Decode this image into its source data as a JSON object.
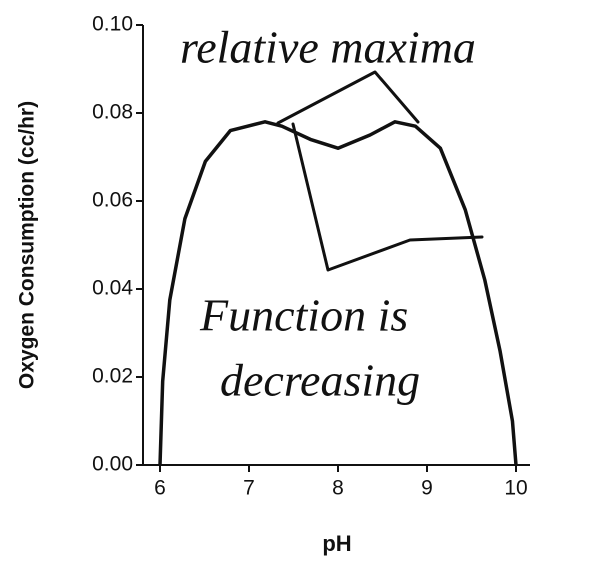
{
  "chart_data": {
    "type": "line",
    "xlabel": "pH",
    "ylabel": "Oxygen Consumption (cc/hr)",
    "xlim": [
      6,
      10
    ],
    "ylim": [
      0,
      0.1
    ],
    "xticks": [
      6,
      7,
      8,
      9,
      10
    ],
    "yticks": [
      {
        "value": 0,
        "label": "0.00"
      },
      {
        "value": 0.02,
        "label": "0.02"
      },
      {
        "value": 0.04,
        "label": "0.04"
      },
      {
        "value": 0.06,
        "label": "0.06"
      },
      {
        "value": 0.08,
        "label": "0.08"
      },
      {
        "value": 0.1,
        "label": "0.10"
      }
    ],
    "series": [
      {
        "color": "#111111",
        "x": [
          6,
          6.03,
          6.11,
          6.28,
          6.51,
          6.79,
          7.18,
          7.37,
          7.69,
          8.0,
          8.36,
          8.64,
          8.87,
          9.15,
          9.43,
          9.65,
          9.82,
          9.96,
          10
        ],
        "values": [
          0,
          0.019,
          0.0375,
          0.056,
          0.069,
          0.076,
          0.078,
          0.077,
          0.074,
          0.072,
          0.075,
          0.078,
          0.077,
          0.072,
          0.058,
          0.042,
          0.026,
          0.01,
          0
        ]
      }
    ],
    "annotations": [
      "relative maxima",
      "Function is",
      "decreasing"
    ]
  }
}
